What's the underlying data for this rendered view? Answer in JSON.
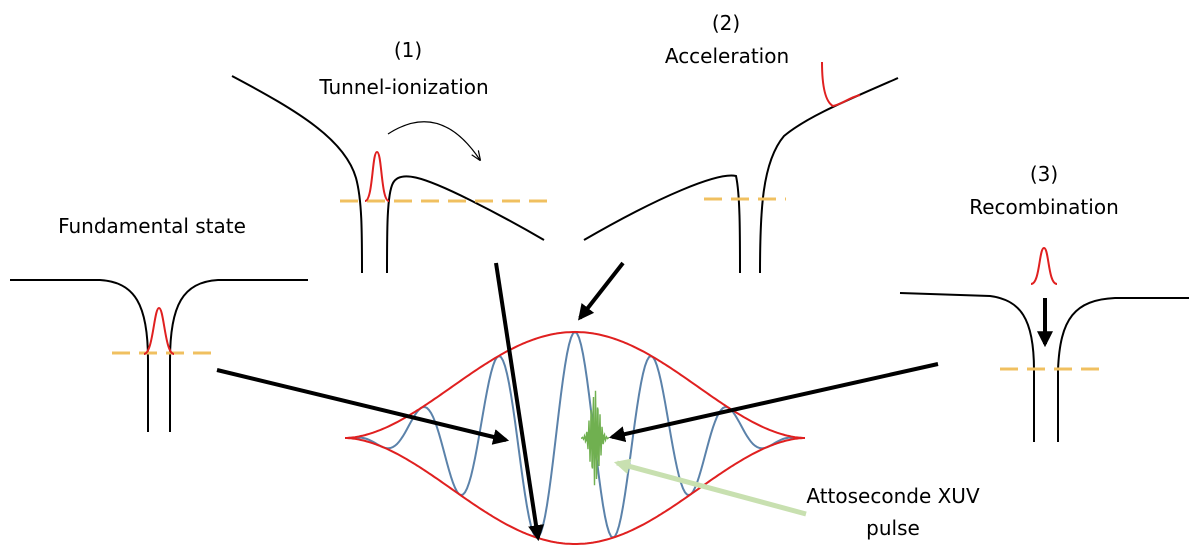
{
  "labels": {
    "fundamental": "Fundamental state",
    "step1_num": "(1)",
    "step1_name": "Tunnel-ionization",
    "step2_num": "(2)",
    "step2_name": "Acceleration",
    "step3_num": "(3)",
    "step3_name": "Recombination",
    "xuv_line1": "Attoseconde XUV",
    "xuv_line2": "pulse"
  },
  "colors": {
    "potential": "#000000",
    "energy_level": "#f0c060",
    "wavepacket": "#e02020",
    "envelope": "#e02020",
    "field": "#5b82aa",
    "xuv": "#70b050",
    "xuv_arrow": "#c8e0b0",
    "arrow": "#000000"
  }
}
